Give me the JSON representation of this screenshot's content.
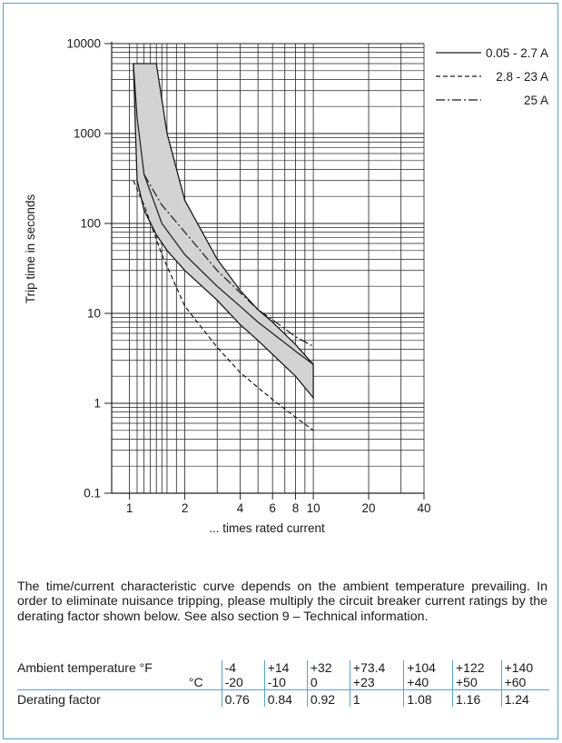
{
  "chart_data": {
    "type": "line",
    "ylabel": "Trip time in seconds",
    "xlabel": "... times rated current",
    "x_scale": "log",
    "y_scale": "log",
    "xlim": [
      0.8,
      40
    ],
    "ylim": [
      0.1,
      10000
    ],
    "x_ticks": [
      1,
      2,
      4,
      6,
      8,
      10,
      20,
      40
    ],
    "x_tick_labels": [
      "1",
      "2",
      "4",
      "6",
      "8",
      "10",
      "20",
      "40"
    ],
    "y_ticks": [
      0.1,
      1,
      10,
      100,
      1000,
      10000
    ],
    "y_tick_labels": [
      "0.1",
      "1",
      "10",
      "100",
      "1000",
      "10000"
    ],
    "grid": true,
    "legend_position": "top-right",
    "band": {
      "x": [
        1.05,
        1.1,
        1.2,
        1.4,
        1.6,
        2,
        3,
        4,
        5,
        6,
        8,
        10
      ],
      "lower": [
        6000,
        300,
        140,
        75,
        50,
        30,
        14,
        7.5,
        5,
        3.5,
        2,
        1.15
      ],
      "upper": [
        6000,
        6000,
        6000,
        6000,
        1000,
        180,
        40,
        18,
        11,
        8,
        4.5,
        2.7
      ]
    },
    "series": [
      {
        "name": "0.05 - 2.7 A",
        "style": "solid",
        "x": [
          1.05,
          1.1,
          1.2,
          1.5,
          2,
          3,
          4,
          5,
          6,
          8,
          10
        ],
        "y": [
          6000,
          1500,
          350,
          100,
          45,
          20,
          12,
          8,
          6,
          3.8,
          2.7
        ]
      },
      {
        "name": "2.8 - 23 A",
        "style": "dashed",
        "x": [
          1.05,
          1.2,
          1.5,
          2,
          3,
          4,
          5,
          6,
          8,
          10
        ],
        "y": [
          300,
          160,
          45,
          12,
          4.2,
          2.2,
          1.5,
          1.1,
          0.7,
          0.5
        ]
      },
      {
        "name": "25 A",
        "style": "dashdot",
        "x": [
          1.2,
          1.5,
          2,
          3,
          4,
          5,
          6,
          8,
          10
        ],
        "y": [
          350,
          160,
          80,
          30,
          17,
          11,
          8.5,
          5.5,
          4.3
        ]
      }
    ],
    "legend": [
      {
        "name": "0.05 - 2.7 A",
        "style": "solid"
      },
      {
        "name": "2.8 - 23 A",
        "style": "dashed"
      },
      {
        "name": "25 A",
        "style": "dashdot"
      }
    ]
  },
  "description": "The time/current characteristic curve depends on the ambient temperature prevailing. In order to eliminate nuisance tripping, please multiply the circuit breaker current ratings by the derating factor shown below. See also section 9 – Technical information.",
  "table": {
    "row_f_label": "Ambient temperature °F",
    "row_c_unit": "°C",
    "row_d_label": "Derating factor",
    "fahrenheit": [
      "-4",
      "+14",
      "+32",
      "+73.4",
      "+104",
      "+122",
      "+140"
    ],
    "celsius": [
      "-20",
      "-10",
      "0",
      "+23",
      "+40",
      "+50",
      "+60"
    ],
    "factor": [
      "0.76",
      "0.84",
      "0.92",
      "1",
      "1.08",
      "1.16",
      "1.24"
    ]
  }
}
